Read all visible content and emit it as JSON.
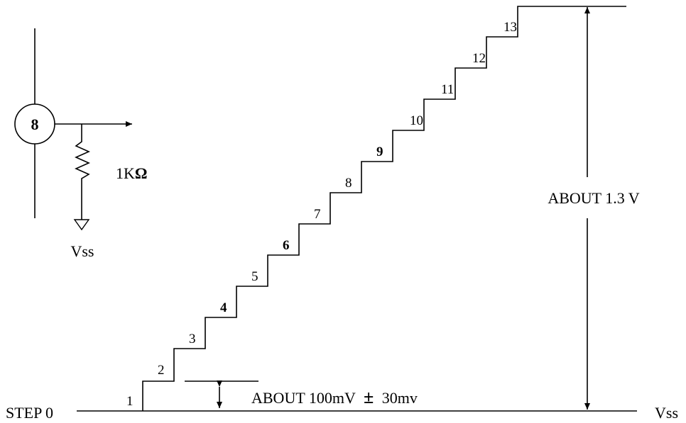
{
  "circuit": {
    "pin_label": "8",
    "resistor_label_value": "1K",
    "resistor_label_unit": "Ω",
    "ground_label": "Vss"
  },
  "staircase": {
    "step_labels": [
      "1",
      "2",
      "3",
      "4",
      "5",
      "6",
      "7",
      "8",
      "9",
      "10",
      "11",
      "12",
      "13"
    ],
    "bold_steps": [
      "4",
      "6",
      "9"
    ]
  },
  "annotations": {
    "baseline_left": "STEP 0",
    "baseline_right": "Vss",
    "step_height_prefix": "ABOUT 100mV",
    "step_height_pm": "±",
    "step_height_suffix": "30mv",
    "total_height": "ABOUT 1.3 V"
  },
  "colors": {
    "line": "#000000",
    "background": "#ffffff"
  }
}
